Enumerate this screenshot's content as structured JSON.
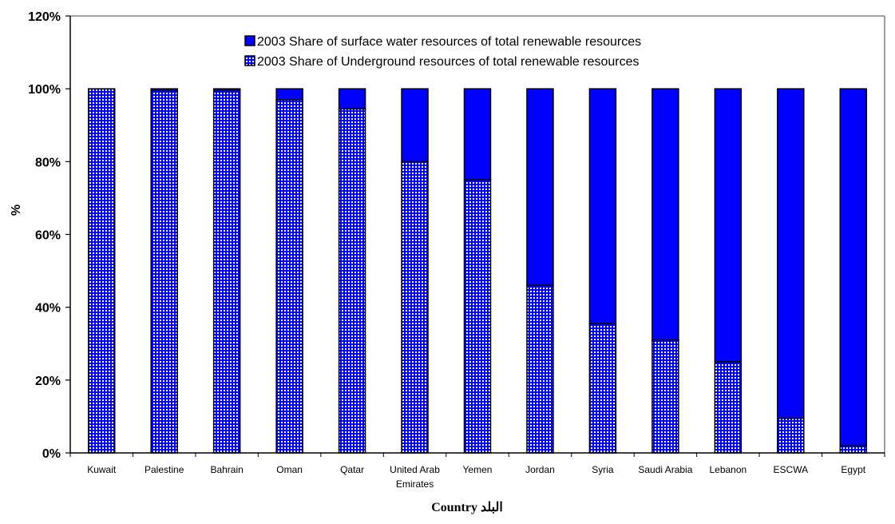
{
  "chart_data": {
    "type": "bar",
    "stacked": true,
    "categories": [
      [
        "Kuwait"
      ],
      [
        "Palestine"
      ],
      [
        "Bahrain"
      ],
      [
        "Oman"
      ],
      [
        "Qatar"
      ],
      [
        "United Arab",
        "Emirates"
      ],
      [
        "Yemen"
      ],
      [
        "Jordan"
      ],
      [
        "Syria"
      ],
      [
        "Saudi Arabia"
      ],
      [
        "Lebanon"
      ],
      [
        "ESCWA"
      ],
      [
        "Egypt"
      ]
    ],
    "series": [
      {
        "name": "2003 Share of Underground resources of total renewable resources",
        "pattern": "grid",
        "color": "#0000ff",
        "values": [
          100,
          99.5,
          99.5,
          97,
          94.5,
          80,
          75,
          46,
          35.5,
          31,
          25,
          9.5,
          2
        ]
      },
      {
        "name": "2003 Share of surface water resources of total renewable resources",
        "pattern": "solid",
        "color": "#0000ff",
        "values": [
          0,
          0.5,
          0.5,
          3,
          5.5,
          20,
          25,
          54,
          64.5,
          69,
          75,
          90.5,
          98
        ]
      }
    ],
    "legend_order": [
      1,
      0
    ],
    "legend_position": "top-center",
    "ylim": [
      0,
      120
    ],
    "yticks": [
      0,
      20,
      40,
      60,
      80,
      100,
      120
    ],
    "ytick_format": "percent",
    "ylabel": "%",
    "xlabel": "Country البلد",
    "grid": false
  }
}
